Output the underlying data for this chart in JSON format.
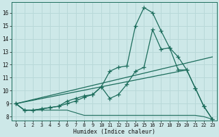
{
  "xlabel": "Humidex (Indice chaleur)",
  "background_color": "#cde8e8",
  "grid_color": "#b8d8d8",
  "line_color": "#1a6b5a",
  "xlim": [
    -0.5,
    23.5
  ],
  "ylim": [
    7.7,
    16.8
  ],
  "xticks": [
    0,
    1,
    2,
    3,
    4,
    5,
    6,
    7,
    8,
    9,
    10,
    11,
    12,
    13,
    14,
    15,
    16,
    17,
    18,
    19,
    20,
    21,
    22,
    23
  ],
  "yticks": [
    8,
    9,
    10,
    11,
    12,
    13,
    14,
    15,
    16
  ],
  "series_flat_x": [
    0,
    1,
    2,
    3,
    4,
    5,
    6,
    7,
    8,
    9,
    10,
    11,
    12,
    13,
    14,
    15,
    16,
    17,
    18,
    19,
    20,
    21,
    22,
    23
  ],
  "series_flat_y": [
    9.0,
    8.5,
    8.5,
    8.5,
    8.5,
    8.5,
    8.5,
    8.3,
    8.1,
    8.1,
    8.1,
    8.1,
    8.1,
    8.1,
    8.1,
    8.1,
    8.1,
    8.1,
    8.1,
    8.1,
    8.1,
    8.1,
    8.0,
    7.8
  ],
  "series_main_x": [
    0,
    1,
    2,
    3,
    4,
    5,
    6,
    7,
    8,
    9,
    10,
    11,
    12,
    13,
    14,
    15,
    16,
    17,
    18,
    19,
    20,
    21,
    22,
    23
  ],
  "series_main_y": [
    9.0,
    8.5,
    8.5,
    8.6,
    8.7,
    8.8,
    9.2,
    9.4,
    9.6,
    9.7,
    10.3,
    11.5,
    11.8,
    11.9,
    15.0,
    16.4,
    16.0,
    14.6,
    13.3,
    12.6,
    11.6,
    10.2,
    8.8,
    7.8
  ],
  "series_second_x": [
    0,
    1,
    2,
    3,
    4,
    5,
    6,
    7,
    8,
    9,
    10,
    11,
    12,
    13,
    14,
    15,
    16,
    17,
    18,
    19,
    20,
    21,
    22,
    23
  ],
  "series_second_y": [
    9.0,
    8.5,
    8.5,
    8.6,
    8.7,
    8.8,
    9.0,
    9.2,
    9.5,
    9.7,
    10.3,
    9.4,
    9.7,
    10.5,
    11.5,
    11.8,
    14.7,
    13.2,
    13.3,
    11.6,
    11.6,
    10.2,
    8.8,
    7.8
  ],
  "series_trend_x": [
    0,
    23
  ],
  "series_trend_y": [
    9.0,
    12.6
  ],
  "series_trend2_x": [
    0,
    20
  ],
  "series_trend2_y": [
    9.0,
    11.6
  ]
}
